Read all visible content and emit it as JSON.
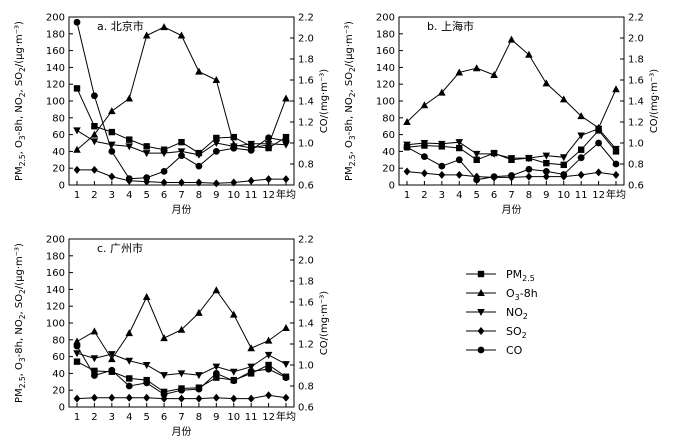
{
  "chart_data": [
    {
      "type": "line",
      "title": "a. 北京市",
      "xlabel": "月份",
      "ylabel_left": "PM2.5, O3-8h, NO2, SO2/(μg·m⁻³)",
      "ylabel_right": "CO/(mg·m⁻³)",
      "categories": [
        "1",
        "2",
        "3",
        "4",
        "5",
        "6",
        "7",
        "8",
        "9",
        "10",
        "11",
        "12",
        "年均"
      ],
      "ylim_left": [
        0,
        200
      ],
      "ylim_right": [
        0.6,
        2.2
      ],
      "series": [
        {
          "name": "PM2.5",
          "axis": "left",
          "values": [
            115,
            70,
            63,
            54,
            46,
            42,
            51,
            38,
            56,
            57,
            46,
            44,
            57
          ]
        },
        {
          "name": "O3-8h",
          "axis": "left",
          "values": [
            42,
            60,
            88,
            103,
            178,
            188,
            178,
            135,
            125,
            48,
            44,
            48,
            103
          ]
        },
        {
          "name": "NO2",
          "axis": "left",
          "values": [
            65,
            52,
            48,
            46,
            38,
            38,
            40,
            36,
            50,
            46,
            49,
            49,
            48
          ]
        },
        {
          "name": "SO2",
          "axis": "left",
          "values": [
            18,
            18,
            10,
            5,
            4,
            3,
            3,
            3,
            2,
            3,
            5,
            7,
            7
          ]
        },
        {
          "name": "CO",
          "axis": "right",
          "values": [
            2.15,
            1.45,
            0.92,
            0.66,
            0.67,
            0.73,
            0.88,
            0.78,
            0.92,
            0.95,
            0.93,
            1.05,
            1.02
          ]
        }
      ]
    },
    {
      "type": "line",
      "title": "b. 上海市",
      "xlabel": "月份",
      "ylabel_left": "PM2.5, O3-8h, NO2, SO2/(μg·m⁻³)",
      "ylabel_right": "CO/(mg·m⁻³)",
      "categories": [
        "1",
        "2",
        "3",
        "4",
        "5",
        "6",
        "7",
        "8",
        "9",
        "10",
        "11",
        "12",
        "年均"
      ],
      "ylim_left": [
        0,
        200
      ],
      "ylim_right": [
        0.6,
        2.2
      ],
      "series": [
        {
          "name": "PM2.5",
          "axis": "left",
          "values": [
            45,
            47,
            46,
            44,
            30,
            38,
            30,
            32,
            26,
            24,
            42,
            65,
            40
          ]
        },
        {
          "name": "O3-8h",
          "axis": "left",
          "values": [
            75,
            95,
            110,
            134,
            139,
            131,
            173,
            155,
            121,
            102,
            82,
            68,
            114
          ]
        },
        {
          "name": "NO2",
          "axis": "left",
          "values": [
            48,
            50,
            49,
            51,
            37,
            37,
            32,
            32,
            35,
            33,
            59,
            67,
            43
          ]
        },
        {
          "name": "SO2",
          "axis": "left",
          "values": [
            16,
            14,
            12,
            12,
            10,
            9,
            9,
            10,
            10,
            10,
            12,
            15,
            12
          ]
        },
        {
          "name": "CO",
          "axis": "right",
          "values": [
            0.96,
            0.87,
            0.78,
            0.84,
            0.65,
            0.68,
            0.69,
            0.75,
            0.73,
            0.7,
            0.86,
            1.0,
            0.8
          ]
        }
      ]
    },
    {
      "type": "line",
      "title": "c. 广州市",
      "xlabel": "月份",
      "ylabel_left": "PM2.5, O3-8h, NO2, SO2/(μg·m⁻³)",
      "ylabel_right": "CO/(mg·m⁻³)",
      "categories": [
        "1",
        "2",
        "3",
        "4",
        "5",
        "6",
        "7",
        "8",
        "9",
        "10",
        "11",
        "12",
        "年均"
      ],
      "ylim_left": [
        0,
        200
      ],
      "ylim_right": [
        0.6,
        2.2
      ],
      "series": [
        {
          "name": "PM2.5",
          "axis": "left",
          "values": [
            54,
            43,
            42,
            34,
            32,
            18,
            22,
            23,
            35,
            32,
            40,
            50,
            36
          ]
        },
        {
          "name": "O3-8h",
          "axis": "left",
          "values": [
            78,
            90,
            57,
            88,
            131,
            82,
            92,
            112,
            139,
            110,
            70,
            79,
            94
          ]
        },
        {
          "name": "NO2",
          "axis": "left",
          "values": [
            64,
            58,
            63,
            55,
            50,
            38,
            40,
            38,
            48,
            42,
            48,
            62,
            51
          ]
        },
        {
          "name": "SO2",
          "axis": "left",
          "values": [
            10,
            11,
            11,
            11,
            11,
            10,
            10,
            10,
            11,
            10,
            10,
            14,
            11
          ]
        },
        {
          "name": "CO",
          "axis": "right",
          "values": [
            1.18,
            0.9,
            0.95,
            0.8,
            0.83,
            0.72,
            0.76,
            0.77,
            0.92,
            0.85,
            0.94,
            0.96,
            0.88
          ]
        }
      ]
    }
  ],
  "legend": [
    {
      "key": "pm25",
      "label": "PM2.5",
      "base": "PM",
      "sub": "2.5",
      "mid": "",
      "sub2": "",
      "tail": "",
      "marker": "square"
    },
    {
      "key": "o3",
      "label": "O3-8h",
      "base": "O",
      "sub": "3",
      "mid": "-8h",
      "sub2": "",
      "tail": "",
      "marker": "triangle"
    },
    {
      "key": "no2",
      "label": "NO2",
      "base": "NO",
      "sub": "2",
      "mid": "",
      "sub2": "",
      "tail": "",
      "marker": "triangle-down"
    },
    {
      "key": "so2",
      "label": "SO2",
      "base": "SO",
      "sub": "2",
      "mid": "",
      "sub2": "",
      "tail": "",
      "marker": "diamond"
    },
    {
      "key": "co",
      "label": "CO",
      "base": "CO",
      "sub": "",
      "mid": "",
      "sub2": "",
      "tail": "",
      "marker": "circle"
    }
  ]
}
